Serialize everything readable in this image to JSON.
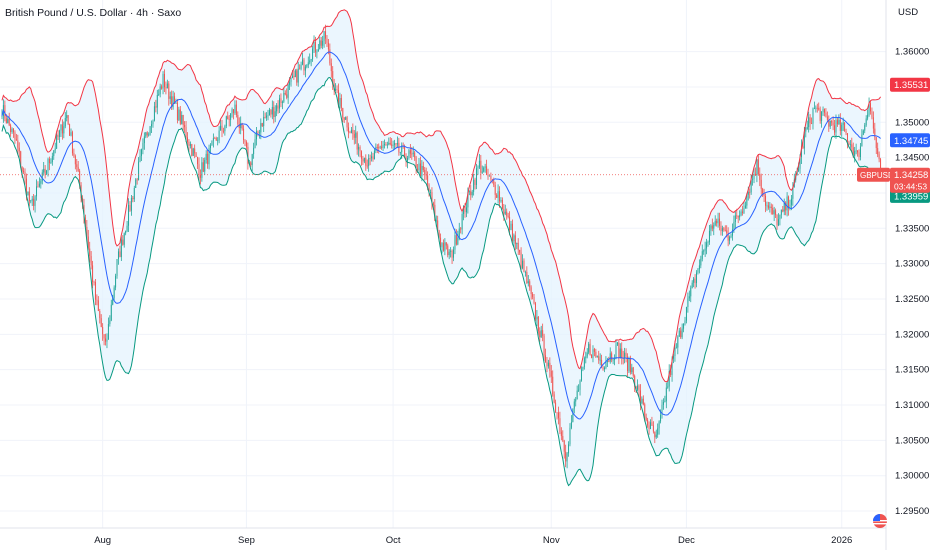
{
  "header": {
    "title": "British Pound / U.S. Dollar · 4h · Saxo",
    "currency": "USD"
  },
  "chart_data": {
    "type": "candlestick",
    "symbol": "GBPUSD",
    "interval": "4h",
    "source": "Saxo",
    "x_ticks": [
      {
        "label": "Aug",
        "bar": 70
      },
      {
        "label": "Sep",
        "bar": 170
      },
      {
        "label": "Oct",
        "bar": 272
      },
      {
        "label": "Nov",
        "bar": 382
      },
      {
        "label": "Dec",
        "bar": 476
      },
      {
        "label": "2026",
        "bar": 584
      }
    ],
    "y_ticks": [
      "1.36000",
      "1.35500",
      "1.35000",
      "1.34500",
      "1.34000",
      "1.33500",
      "1.33000",
      "1.32500",
      "1.32000",
      "1.31500",
      "1.31000",
      "1.30500",
      "1.30000",
      "1.29500"
    ],
    "ylim": [
      1.2926,
      1.3673
    ],
    "total_bars": 612,
    "closes_keypoints": [
      [
        0,
        1.352
      ],
      [
        10,
        1.347
      ],
      [
        20,
        1.338
      ],
      [
        30,
        1.343
      ],
      [
        45,
        1.351
      ],
      [
        55,
        1.34
      ],
      [
        65,
        1.325
      ],
      [
        72,
        1.318
      ],
      [
        80,
        1.33
      ],
      [
        90,
        1.339
      ],
      [
        100,
        1.348
      ],
      [
        112,
        1.356
      ],
      [
        125,
        1.35
      ],
      [
        138,
        1.343
      ],
      [
        150,
        1.348
      ],
      [
        162,
        1.352
      ],
      [
        172,
        1.344
      ],
      [
        180,
        1.35
      ],
      [
        190,
        1.352
      ],
      [
        200,
        1.355
      ],
      [
        215,
        1.36
      ],
      [
        225,
        1.362
      ],
      [
        232,
        1.354
      ],
      [
        242,
        1.349
      ],
      [
        255,
        1.344
      ],
      [
        265,
        1.347
      ],
      [
        275,
        1.346
      ],
      [
        285,
        1.345
      ],
      [
        295,
        1.342
      ],
      [
        305,
        1.333
      ],
      [
        312,
        1.331
      ],
      [
        322,
        1.338
      ],
      [
        332,
        1.344
      ],
      [
        345,
        1.34
      ],
      [
        357,
        1.333
      ],
      [
        367,
        1.326
      ],
      [
        377,
        1.318
      ],
      [
        385,
        1.31
      ],
      [
        392,
        1.303
      ],
      [
        398,
        1.31
      ],
      [
        408,
        1.318
      ],
      [
        418,
        1.316
      ],
      [
        428,
        1.318
      ],
      [
        438,
        1.315
      ],
      [
        448,
        1.308
      ],
      [
        455,
        1.305
      ],
      [
        465,
        1.315
      ],
      [
        475,
        1.323
      ],
      [
        485,
        1.33
      ],
      [
        495,
        1.336
      ],
      [
        505,
        1.334
      ],
      [
        515,
        1.338
      ],
      [
        525,
        1.344
      ],
      [
        532,
        1.338
      ],
      [
        540,
        1.336
      ],
      [
        550,
        1.34
      ],
      [
        558,
        1.348
      ],
      [
        565,
        1.352
      ],
      [
        575,
        1.35
      ],
      [
        585,
        1.349
      ],
      [
        595,
        1.345
      ],
      [
        603,
        1.353
      ],
      [
        611,
        1.3426
      ]
    ],
    "indicators": {
      "bollinger_upper_last": "1.35531",
      "bollinger_middle_last": "1.34745",
      "bollinger_lower_last": "1.33959"
    },
    "last_price": "1.34258",
    "countdown": "03:44:53",
    "colors": {
      "up": "#26a69a",
      "down": "#ef5350",
      "basis": "#2962ff",
      "upper": "#f23645",
      "lower": "#089981",
      "band_fill": "#e3f2fd",
      "grid": "#f0f3fa"
    },
    "grid": true
  },
  "price_tags": [
    {
      "id": "upper",
      "value_path": "chart_data.indicators.bollinger_upper_last",
      "bg": "#f23645",
      "fg": "#ffffff"
    },
    {
      "id": "basis",
      "value_path": "chart_data.indicators.bollinger_middle_last",
      "bg": "#2962ff",
      "fg": "#ffffff"
    },
    {
      "id": "lower",
      "value_path": "chart_data.indicators.bollinger_lower_last",
      "bg": "#089981",
      "fg": "#ffffff"
    }
  ]
}
